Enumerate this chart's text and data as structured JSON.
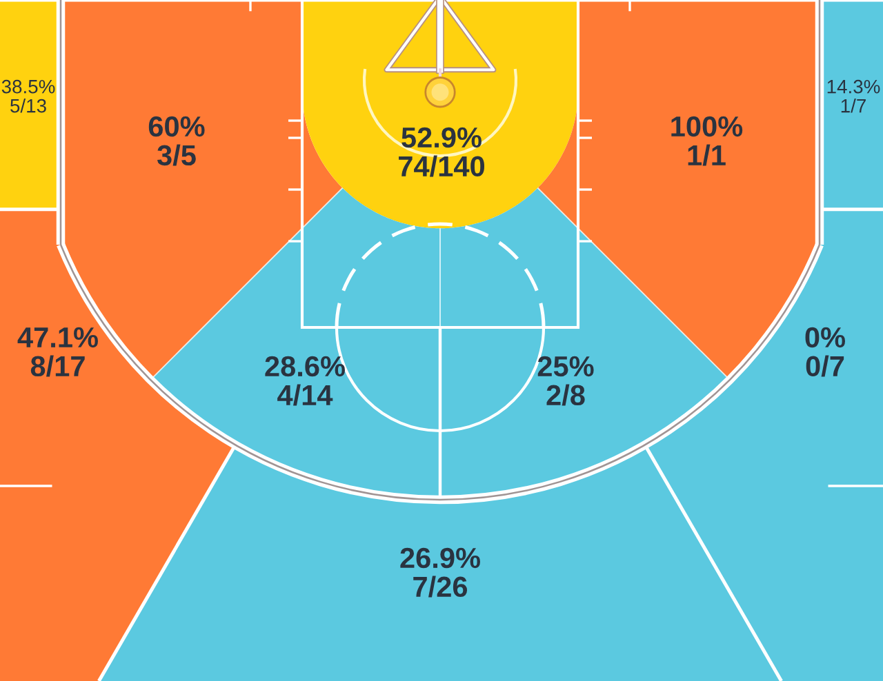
{
  "chart_data": {
    "type": "other",
    "categories": [
      null,
      null,
      null,
      null,
      null,
      null,
      null,
      null,
      null,
      null
    ],
    "values": [
      38.5,
      60,
      52.9,
      100,
      14.3,
      47.1,
      28.6,
      25,
      0,
      26.9
    ],
    "value_labels": [
      "38.5%\n5/13",
      "60%\n3/5",
      "52.9%\n74/140",
      "100%\n1/1",
      "14.3%\n1/7",
      "47.1%\n8/17",
      "28.6%\n4/14",
      "25%\n2/8",
      "0%\n0/7",
      "26.9%\n7/26"
    ],
    "colors": [
      "#ffd20f",
      "#ff7a35",
      "#ffd20f",
      "#ff7a35",
      "#5bc9e0",
      "#ff7a35",
      "#5bc9e0",
      "#5bc9e0",
      "#5bc9e0",
      "#5bc9e0"
    ]
  }
}
